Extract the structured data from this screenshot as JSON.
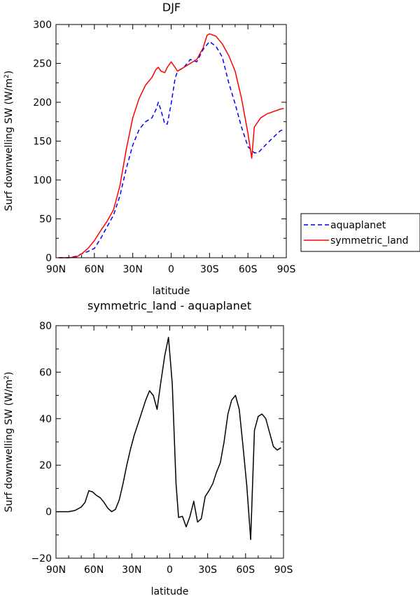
{
  "chart_data": [
    {
      "type": "line",
      "title": "DJF",
      "xlabel": "latitude",
      "ylabel": "Surf downwelling SW (W/m²)",
      "ylabel_main": "Surf downwelling SW (W/m",
      "ylabel_sup": "2",
      "ylabel_close": ")",
      "xlim": [
        90,
        -90
      ],
      "ylim": [
        0,
        300
      ],
      "xticks": [
        90,
        60,
        30,
        0,
        -30,
        -60,
        -90
      ],
      "xtick_labels": [
        "90N",
        "60N",
        "30N",
        "0",
        "30S",
        "60S",
        "90S"
      ],
      "yticks": [
        0,
        50,
        100,
        150,
        200,
        250,
        300
      ],
      "ytick_labels": [
        "0",
        "50",
        "100",
        "150",
        "200",
        "250",
        "300"
      ],
      "legend": "outside-right",
      "series": [
        {
          "name": "aquaplanet",
          "color": "#0000ff",
          "dash": true,
          "x": [
            88,
            80,
            74,
            70,
            65,
            60,
            55,
            50,
            45,
            40,
            35,
            30,
            25,
            20,
            15,
            12,
            10,
            8,
            5,
            3,
            0,
            -3,
            -5,
            -10,
            -15,
            -20,
            -25,
            -28,
            -30,
            -35,
            -40,
            -45,
            -50,
            -55,
            -60,
            -63,
            -65,
            -68,
            -72,
            -78,
            -85,
            -88
          ],
          "y": [
            0,
            0,
            2,
            5,
            8,
            12,
            25,
            40,
            55,
            80,
            115,
            145,
            165,
            175,
            180,
            190,
            200,
            190,
            172,
            172,
            198,
            230,
            240,
            245,
            255,
            252,
            268,
            274,
            278,
            272,
            258,
            225,
            198,
            168,
            143,
            138,
            135,
            135,
            142,
            152,
            163,
            165
          ]
        },
        {
          "name": "symmetric_land",
          "color": "#ff0000",
          "dash": false,
          "x": [
            88,
            80,
            74,
            70,
            65,
            60,
            55,
            50,
            45,
            40,
            35,
            30,
            25,
            20,
            15,
            12,
            10,
            8,
            5,
            3,
            0,
            -3,
            -5,
            -10,
            -15,
            -20,
            -25,
            -28,
            -30,
            -35,
            -40,
            -45,
            -50,
            -55,
            -60,
            -63,
            -65,
            -70,
            -75,
            -80,
            -85,
            -88
          ],
          "y": [
            0,
            0,
            1,
            5,
            12,
            22,
            35,
            47,
            62,
            93,
            140,
            180,
            205,
            222,
            232,
            242,
            245,
            240,
            238,
            245,
            252,
            245,
            240,
            245,
            250,
            255,
            270,
            286,
            288,
            285,
            275,
            260,
            240,
            205,
            160,
            128,
            168,
            180,
            185,
            188,
            191,
            192
          ]
        }
      ]
    },
    {
      "type": "line",
      "title": "symmetric_land - aquaplanet",
      "xlabel": "latitude",
      "ylabel": "Surf downwelling SW (W/m²)",
      "ylabel_main": "Surf downwelling SW (W/m",
      "ylabel_sup": "2",
      "ylabel_close": ")",
      "xlim": [
        90,
        -90
      ],
      "ylim": [
        -20,
        80
      ],
      "xticks": [
        90,
        60,
        30,
        0,
        -30,
        -60,
        -90
      ],
      "xtick_labels": [
        "90N",
        "60N",
        "30N",
        "0",
        "30S",
        "60S",
        "90S"
      ],
      "yticks": [
        -20,
        0,
        20,
        40,
        60,
        80
      ],
      "ytick_labels": [
        "−20",
        "0",
        "20",
        "40",
        "60",
        "80"
      ],
      "series": [
        {
          "color": "#000000",
          "dash": false,
          "x": [
            90,
            80,
            75,
            70,
            67,
            64,
            61,
            58,
            55,
            52,
            49,
            46,
            43,
            40,
            37,
            34,
            31,
            28,
            25,
            22,
            19,
            16,
            13,
            10,
            7,
            4,
            1,
            -2,
            -5,
            -7,
            -10,
            -13,
            -16,
            -19,
            -22,
            -25,
            -28,
            -31,
            -34,
            -37,
            -40,
            -43,
            -46,
            -49,
            -52,
            -55,
            -58,
            -61,
            -64,
            -67,
            -70,
            -73,
            -76,
            -79,
            -82,
            -85,
            -88
          ],
          "y": [
            0,
            0,
            0.5,
            2,
            4,
            9,
            8.5,
            7,
            6,
            4,
            1.5,
            0,
            1,
            5,
            12,
            20,
            27,
            33,
            38,
            43,
            48,
            52,
            50,
            44,
            56,
            67,
            75,
            55,
            12,
            -2.5,
            -2,
            -6.5,
            -2,
            4.5,
            -4.5,
            -3,
            6.5,
            9,
            12,
            17,
            21,
            30,
            42,
            48,
            50,
            44,
            28,
            11,
            -12,
            35,
            41,
            42,
            40,
            34,
            28,
            26.5,
            27.5
          ]
        }
      ]
    }
  ]
}
